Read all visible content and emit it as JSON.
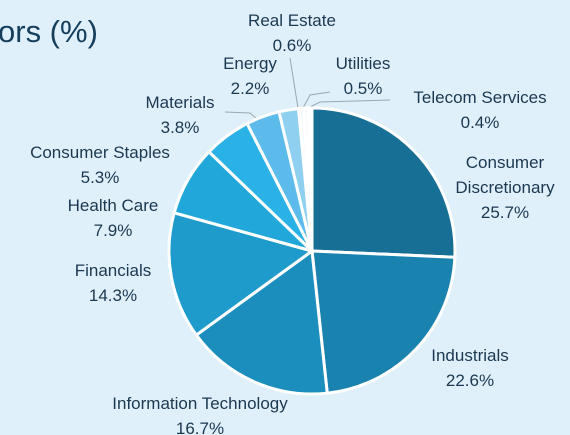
{
  "chart_data": {
    "type": "pie",
    "title": "ors (%)",
    "categories": [
      "Consumer Discretionary",
      "Industrials",
      "Information Technology",
      "Financials",
      "Health Care",
      "Consumer Staples",
      "Materials",
      "Energy",
      "Real Estate",
      "Utilities",
      "Telecom Services"
    ],
    "values": [
      25.7,
      22.6,
      16.7,
      14.3,
      7.9,
      5.3,
      3.8,
      2.2,
      0.6,
      0.5,
      0.4
    ],
    "value_labels": [
      "25.7%",
      "22.6%",
      "16.7%",
      "14.3%",
      "7.9%",
      "5.3%",
      "3.8%",
      "2.2%",
      "0.6%",
      "0.5%",
      "0.4%"
    ],
    "colors": [
      "#176f96",
      "#1a82ae",
      "#1b8ebd",
      "#1e9bcb",
      "#21a7da",
      "#2ab1e5",
      "#5cbbea",
      "#8fd0f1",
      "#f4fafd",
      "#f4fafd",
      "#f4fafd"
    ]
  }
}
